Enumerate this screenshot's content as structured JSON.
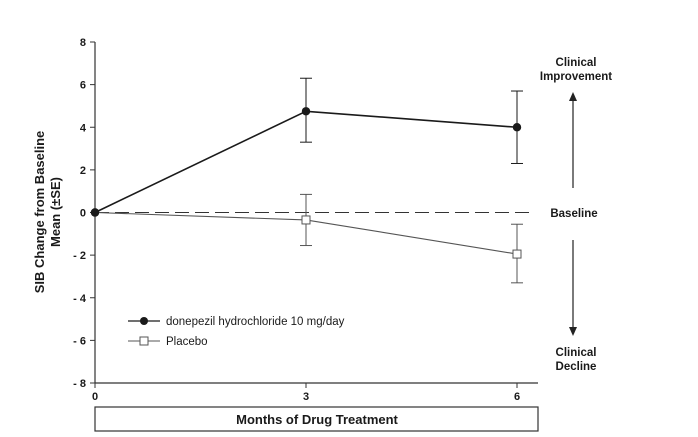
{
  "chart_data": {
    "type": "line",
    "xlabel": "Months of Drug Treatment",
    "ylabel_line1": "SIB Change from Baseline",
    "ylabel_line2": "Mean (±SE)",
    "x": [
      0,
      3,
      6
    ],
    "x_ticks": [
      "0",
      "3",
      "6"
    ],
    "xlim": [
      0,
      6
    ],
    "ylim": [
      -8,
      8
    ],
    "y_ticks": [
      8,
      6,
      4,
      2,
      0,
      -2,
      -4,
      -6,
      -8
    ],
    "y_tick_labels": [
      "8",
      "6",
      "4",
      "2",
      "0",
      "- 2",
      "- 4",
      "- 6",
      "- 8"
    ],
    "baseline_value": 0,
    "baseline_label": "Baseline",
    "improvement_label_line1": "Clinical",
    "improvement_label_line2": "Improvement",
    "decline_label_line1": "Clinical",
    "decline_label_line2": "Decline",
    "legend_placement": "bottom-left",
    "grid": false,
    "series": [
      {
        "name": "donepezil hydrochloride 10 mg/day",
        "marker": "filled-circle",
        "values": [
          0,
          4.75,
          4.0
        ],
        "err_upper": [
          0,
          6.3,
          5.7
        ],
        "err_lower": [
          0,
          3.3,
          2.3
        ]
      },
      {
        "name": "Placebo",
        "marker": "open-square",
        "values": [
          0,
          -0.35,
          -1.95
        ],
        "err_upper": [
          0,
          0.85,
          -0.55
        ],
        "err_lower": [
          0,
          -1.55,
          -3.3
        ]
      }
    ],
    "colors": {
      "donepezil": "#1a1a1a",
      "placebo": "#555555",
      "axis": "#333333"
    }
  }
}
